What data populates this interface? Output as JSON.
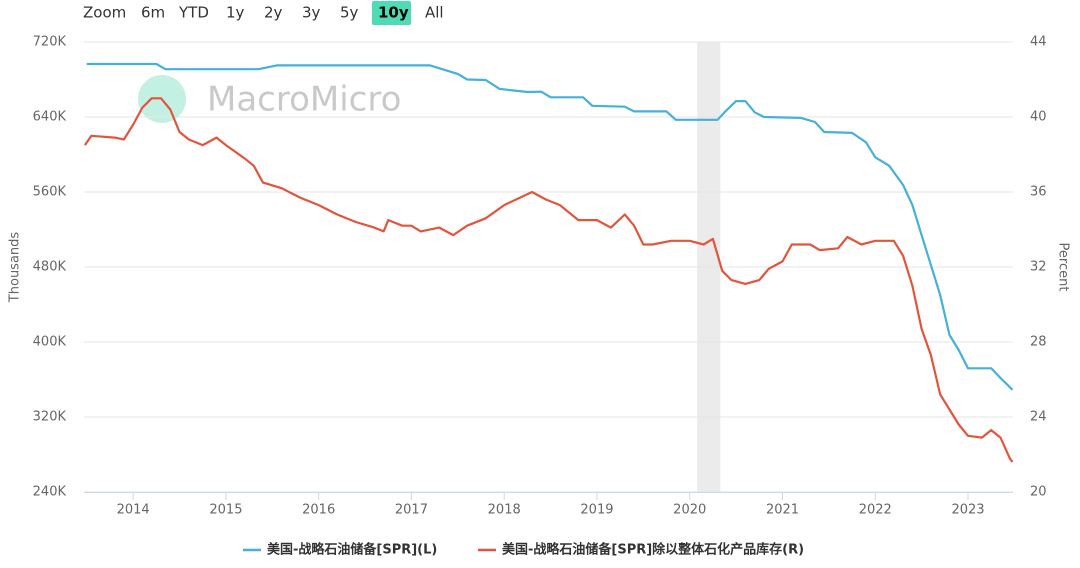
{
  "range_selector": {
    "label": "Zoom",
    "buttons": [
      "6m",
      "YTD",
      "1y",
      "2y",
      "3y",
      "5y",
      "10y",
      "All"
    ],
    "active": "10y"
  },
  "watermark": "MacroMicro",
  "chart_data": {
    "type": "line",
    "y_label": "Thousands",
    "y2_label": "Percent",
    "xlim": [
      2013.47,
      2023.485
    ],
    "xticks": [
      2014,
      2015,
      2016,
      2017,
      2018,
      2019,
      2020,
      2021,
      2022,
      2023
    ],
    "ylim": [
      240,
      720
    ],
    "yticks": [
      {
        "value": 240,
        "label": "240K"
      },
      {
        "value": 320,
        "label": "320K"
      },
      {
        "value": 400,
        "label": "400K"
      },
      {
        "value": 480,
        "label": "480K"
      },
      {
        "value": 560,
        "label": "560K"
      },
      {
        "value": 640,
        "label": "640K"
      },
      {
        "value": 720,
        "label": "720K"
      }
    ],
    "y2lim": [
      20,
      44
    ],
    "y2ticks": [
      20,
      24,
      28,
      32,
      36,
      40,
      44
    ],
    "grid": true,
    "shaded_regions": [
      [
        2020.08,
        2020.33
      ]
    ],
    "series": [
      {
        "name": "美国-战略石油储备[SPR](L)",
        "color": "#45b0d8",
        "axis": "y",
        "x": [
          2013.5,
          2014.25,
          2014.35,
          2015.35,
          2015.55,
          2017.2,
          2017.5,
          2017.6,
          2017.8,
          2017.95,
          2018.25,
          2018.4,
          2018.5,
          2018.85,
          2018.95,
          2019.3,
          2019.4,
          2019.75,
          2019.85,
          2020.3,
          2020.4,
          2020.5,
          2020.6,
          2020.7,
          2020.8,
          2021.2,
          2021.35,
          2021.45,
          2021.75,
          2021.9,
          2022.0,
          2022.15,
          2022.3,
          2022.4,
          2022.5,
          2022.6,
          2022.7,
          2022.8,
          2022.9,
          2023.0,
          2023.25,
          2023.35,
          2023.48
        ],
        "values": [
          696.5,
          696.5,
          691,
          691,
          695,
          695,
          686,
          680,
          679.5,
          670,
          666.7,
          667,
          661,
          661,
          652,
          651,
          646,
          646,
          637,
          637,
          647.5,
          657,
          657,
          645,
          640,
          639,
          634.7,
          624,
          623,
          613,
          597,
          588,
          567.5,
          546,
          514,
          482,
          450,
          407.5,
          391.5,
          372,
          372,
          361.6,
          349
        ]
      },
      {
        "name": "美国-战略石油储备[SPR]除以整体石化产品库存(R)",
        "color": "#e2553c",
        "axis": "y2",
        "x": [
          2013.48,
          2013.55,
          2013.8,
          2013.9,
          2014.0,
          2014.1,
          2014.2,
          2014.3,
          2014.4,
          2014.5,
          2014.6,
          2014.75,
          2014.9,
          2015.0,
          2015.2,
          2015.3,
          2015.4,
          2015.6,
          2015.8,
          2016.0,
          2016.2,
          2016.4,
          2016.6,
          2016.7,
          2016.75,
          2016.9,
          2017.0,
          2017.1,
          2017.3,
          2017.45,
          2017.6,
          2017.8,
          2018.0,
          2018.3,
          2018.45,
          2018.6,
          2018.8,
          2019.0,
          2019.15,
          2019.3,
          2019.4,
          2019.5,
          2019.6,
          2019.8,
          2020.0,
          2020.15,
          2020.25,
          2020.35,
          2020.45,
          2020.6,
          2020.75,
          2020.85,
          2021.0,
          2021.1,
          2021.3,
          2021.4,
          2021.6,
          2021.7,
          2021.85,
          2022.0,
          2022.2,
          2022.3,
          2022.4,
          2022.5,
          2022.6,
          2022.7,
          2022.8,
          2022.9,
          2023.0,
          2023.15,
          2023.25,
          2023.35,
          2023.45,
          2023.48
        ],
        "values": [
          38.5,
          39.0,
          38.9,
          38.8,
          39.6,
          40.5,
          41.0,
          41.0,
          40.4,
          39.2,
          38.8,
          38.5,
          38.9,
          38.5,
          37.8,
          37.4,
          36.5,
          36.2,
          35.7,
          35.3,
          34.8,
          34.4,
          34.1,
          33.9,
          34.5,
          34.2,
          34.2,
          33.9,
          34.1,
          33.7,
          34.2,
          34.6,
          35.3,
          36.0,
          35.6,
          35.3,
          34.5,
          34.5,
          34.1,
          34.8,
          34.2,
          33.2,
          33.2,
          33.4,
          33.4,
          33.2,
          33.5,
          31.8,
          31.3,
          31.1,
          31.3,
          31.9,
          32.3,
          33.2,
          33.2,
          32.9,
          33.0,
          33.6,
          33.2,
          33.4,
          33.4,
          32.6,
          31.0,
          28.7,
          27.3,
          25.2,
          24.4,
          23.6,
          23.0,
          22.9,
          23.3,
          22.9,
          21.8,
          21.6
        ]
      }
    ]
  }
}
